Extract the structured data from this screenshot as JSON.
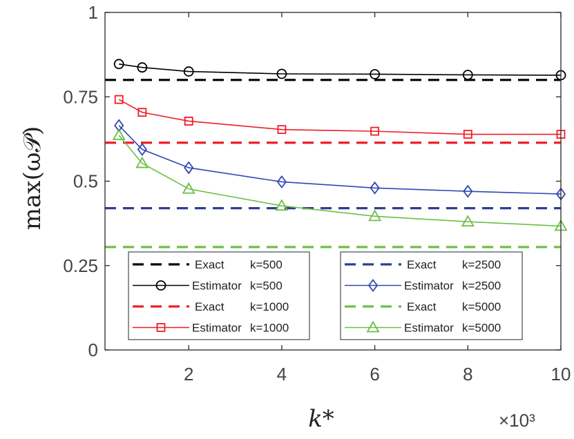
{
  "chart_data": {
    "type": "line",
    "xlabel": "k*",
    "ylabel": "max(ω𝒫)",
    "x_multiplier_label": "×10³",
    "xlim": [
      0.2,
      10
    ],
    "ylim": [
      0,
      1
    ],
    "xticks": [
      2,
      4,
      6,
      8,
      10
    ],
    "xtick_labels": [
      "2",
      "4",
      "6",
      "8",
      "10"
    ],
    "yticks": [
      0,
      0.25,
      0.5,
      0.75,
      1
    ],
    "ytick_labels": [
      "0",
      "0.25",
      "0.5",
      "0.75",
      "1"
    ],
    "grid": false,
    "x": [
      0.5,
      1,
      2,
      4,
      6,
      8,
      10
    ],
    "series": [
      {
        "name": "Exact",
        "legend_k": "k=500",
        "style": "dashed",
        "color": "#000000",
        "value": 0.8
      },
      {
        "name": "Estimator",
        "legend_k": "k=500",
        "style": "solid",
        "marker": "circle",
        "color": "#000000",
        "values": [
          0.847,
          0.837,
          0.825,
          0.818,
          0.817,
          0.815,
          0.814
        ]
      },
      {
        "name": "Exact",
        "legend_k": "k=1000",
        "style": "dashed",
        "color": "#ee1c25",
        "value": 0.614
      },
      {
        "name": "Estimator",
        "legend_k": "k=1000",
        "style": "solid",
        "marker": "square",
        "color": "#ee1c25",
        "values": [
          0.742,
          0.704,
          0.678,
          0.653,
          0.648,
          0.639,
          0.639
        ]
      },
      {
        "name": "Exact",
        "legend_k": "k=2500",
        "style": "dashed",
        "color": "#2e3c92",
        "value": 0.42
      },
      {
        "name": "Estimator",
        "legend_k": "k=2500",
        "style": "solid",
        "marker": "diamond",
        "color": "#3048b0",
        "values": [
          0.665,
          0.594,
          0.54,
          0.498,
          0.48,
          0.47,
          0.462
        ]
      },
      {
        "name": "Exact",
        "legend_k": "k=5000",
        "style": "dashed",
        "color": "#6abf45",
        "value": 0.305
      },
      {
        "name": "Estimator",
        "legend_k": "k=5000",
        "style": "solid",
        "marker": "triangle",
        "color": "#6abf45",
        "values": [
          0.636,
          0.553,
          0.477,
          0.427,
          0.396,
          0.38,
          0.367
        ]
      }
    ],
    "legends": [
      {
        "placement": "lower-left",
        "series_indices": [
          0,
          1,
          2,
          3
        ]
      },
      {
        "placement": "lower-right",
        "series_indices": [
          4,
          5,
          6,
          7
        ]
      }
    ]
  }
}
